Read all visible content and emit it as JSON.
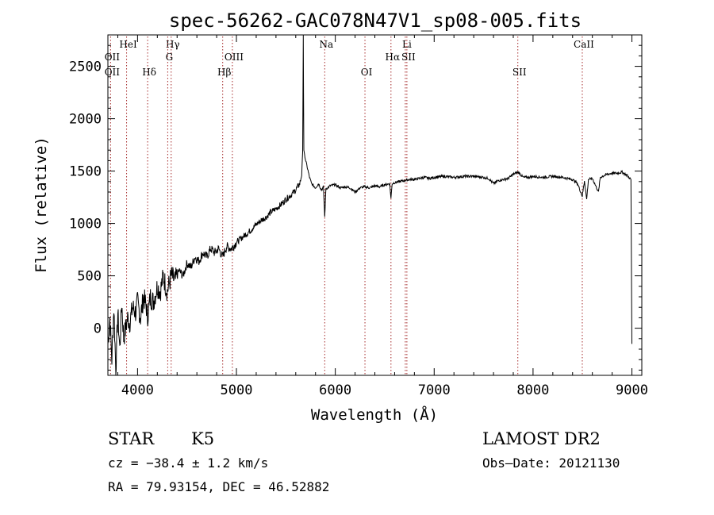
{
  "chart_data": {
    "type": "line",
    "title": "spec-56262-GAC078N47V1_sp08-005.fits",
    "xlabel": "Wavelength (Å)",
    "ylabel": "Flux (relative)",
    "xlim": [
      3700,
      9100
    ],
    "ylim": [
      -450,
      2800
    ],
    "xticks": [
      {
        "value": 4000,
        "label": "4000"
      },
      {
        "value": 5000,
        "label": "5000"
      },
      {
        "value": 6000,
        "label": "6000"
      },
      {
        "value": 7000,
        "label": "7000"
      },
      {
        "value": 8000,
        "label": "8000"
      },
      {
        "value": 9000,
        "label": "9000"
      }
    ],
    "yticks": [
      {
        "value": 0,
        "label": "0"
      },
      {
        "value": 500,
        "label": "500"
      },
      {
        "value": 1000,
        "label": "1000"
      },
      {
        "value": 1500,
        "label": "1500"
      },
      {
        "value": 2000,
        "label": "2000"
      },
      {
        "value": 2500,
        "label": "2500"
      }
    ],
    "grid": false,
    "line_color": "#000000",
    "marker_color": "#a52a2a",
    "spectrum": [
      [
        3700,
        -150
      ],
      [
        3720,
        100
      ],
      [
        3740,
        -300
      ],
      [
        3760,
        200
      ],
      [
        3780,
        -400
      ],
      [
        3800,
        150
      ],
      [
        3820,
        -200
      ],
      [
        3840,
        250
      ],
      [
        3860,
        -100
      ],
      [
        3880,
        0
      ],
      [
        3900,
        100
      ],
      [
        3920,
        50
      ],
      [
        3950,
        200
      ],
      [
        3980,
        150
      ],
      [
        4000,
        250
      ],
      [
        4030,
        100
      ],
      [
        4060,
        300
      ],
      [
        4090,
        200
      ],
      [
        4100,
        100
      ],
      [
        4130,
        300
      ],
      [
        4160,
        250
      ],
      [
        4200,
        400
      ],
      [
        4230,
        350
      ],
      [
        4260,
        500
      ],
      [
        4300,
        350
      ],
      [
        4340,
        500
      ],
      [
        4380,
        450
      ],
      [
        4420,
        550
      ],
      [
        4460,
        500
      ],
      [
        4500,
        620
      ],
      [
        4540,
        580
      ],
      [
        4580,
        680
      ],
      [
        4620,
        640
      ],
      [
        4660,
        720
      ],
      [
        4700,
        680
      ],
      [
        4740,
        760
      ],
      [
        4780,
        720
      ],
      [
        4820,
        760
      ],
      [
        4861,
        680
      ],
      [
        4900,
        780
      ],
      [
        4950,
        760
      ],
      [
        5000,
        820
      ],
      [
        5050,
        860
      ],
      [
        5100,
        900
      ],
      [
        5150,
        940
      ],
      [
        5200,
        990
      ],
      [
        5250,
        1030
      ],
      [
        5300,
        1060
      ],
      [
        5350,
        1110
      ],
      [
        5400,
        1140
      ],
      [
        5450,
        1180
      ],
      [
        5500,
        1230
      ],
      [
        5550,
        1270
      ],
      [
        5600,
        1320
      ],
      [
        5640,
        1380
      ],
      [
        5660,
        1460
      ],
      [
        5670,
        1680
      ],
      [
        5676,
        2800
      ],
      [
        5682,
        1700
      ],
      [
        5700,
        1600
      ],
      [
        5720,
        1520
      ],
      [
        5740,
        1440
      ],
      [
        5760,
        1380
      ],
      [
        5780,
        1360
      ],
      [
        5800,
        1340
      ],
      [
        5830,
        1380
      ],
      [
        5860,
        1320
      ],
      [
        5880,
        1350
      ],
      [
        5893,
        1060
      ],
      [
        5905,
        1330
      ],
      [
        5950,
        1360
      ],
      [
        6000,
        1370
      ],
      [
        6050,
        1340
      ],
      [
        6100,
        1350
      ],
      [
        6150,
        1340
      ],
      [
        6200,
        1300
      ],
      [
        6250,
        1340
      ],
      [
        6300,
        1350
      ],
      [
        6350,
        1340
      ],
      [
        6400,
        1360
      ],
      [
        6450,
        1350
      ],
      [
        6500,
        1370
      ],
      [
        6550,
        1380
      ],
      [
        6563,
        1240
      ],
      [
        6575,
        1380
      ],
      [
        6600,
        1390
      ],
      [
        6650,
        1400
      ],
      [
        6700,
        1410
      ],
      [
        6750,
        1420
      ],
      [
        6800,
        1420
      ],
      [
        6850,
        1430
      ],
      [
        6900,
        1440
      ],
      [
        6950,
        1430
      ],
      [
        7000,
        1440
      ],
      [
        7100,
        1450
      ],
      [
        7200,
        1440
      ],
      [
        7300,
        1450
      ],
      [
        7400,
        1450
      ],
      [
        7500,
        1440
      ],
      [
        7550,
        1430
      ],
      [
        7600,
        1380
      ],
      [
        7650,
        1410
      ],
      [
        7700,
        1420
      ],
      [
        7750,
        1430
      ],
      [
        7800,
        1470
      ],
      [
        7850,
        1490
      ],
      [
        7900,
        1440
      ],
      [
        7950,
        1440
      ],
      [
        8000,
        1450
      ],
      [
        8100,
        1440
      ],
      [
        8200,
        1450
      ],
      [
        8300,
        1440
      ],
      [
        8400,
        1420
      ],
      [
        8450,
        1380
      ],
      [
        8498,
        1260
      ],
      [
        8520,
        1410
      ],
      [
        8542,
        1230
      ],
      [
        8560,
        1420
      ],
      [
        8600,
        1430
      ],
      [
        8662,
        1300
      ],
      [
        8680,
        1440
      ],
      [
        8700,
        1450
      ],
      [
        8750,
        1470
      ],
      [
        8800,
        1480
      ],
      [
        8850,
        1480
      ],
      [
        8900,
        1490
      ],
      [
        8950,
        1460
      ],
      [
        8990,
        1420
      ],
      [
        9000,
        -150
      ]
    ],
    "lines": [
      {
        "label": "HeI",
        "wave": 3889,
        "row": 0
      },
      {
        "label": "OII",
        "wave": 3727,
        "row": 1
      },
      {
        "label": "OII",
        "wave": 3727,
        "row": 2
      },
      {
        "label": "Hδ",
        "wave": 4102,
        "row": 2
      },
      {
        "label": "Hγ",
        "wave": 4340,
        "row": 0
      },
      {
        "label": "G",
        "wave": 4305,
        "row": 1
      },
      {
        "label": "OIII",
        "wave": 4959,
        "row": 1
      },
      {
        "label": "Hβ",
        "wave": 4861,
        "row": 2
      },
      {
        "label": "Na",
        "wave": 5893,
        "row": 0
      },
      {
        "label": "OI",
        "wave": 6300,
        "row": 2
      },
      {
        "label": "Li",
        "wave": 6708,
        "row": 0
      },
      {
        "label": "Hα",
        "wave": 6563,
        "row": 1
      },
      {
        "label": "SII",
        "wave": 6724,
        "row": 1
      },
      {
        "label": "SII",
        "wave": 7846,
        "row": 2
      },
      {
        "label": "CaII",
        "wave": 8498,
        "row": 0
      }
    ]
  },
  "info": {
    "object_class": "STAR",
    "subclass": "K5",
    "survey": "LAMOST DR2",
    "cz": "cz = −38.4 ± 1.2 km/s",
    "obs_date": "Obs–Date: 20121130",
    "coords": "RA =  79.93154, DEC =  46.52882"
  }
}
